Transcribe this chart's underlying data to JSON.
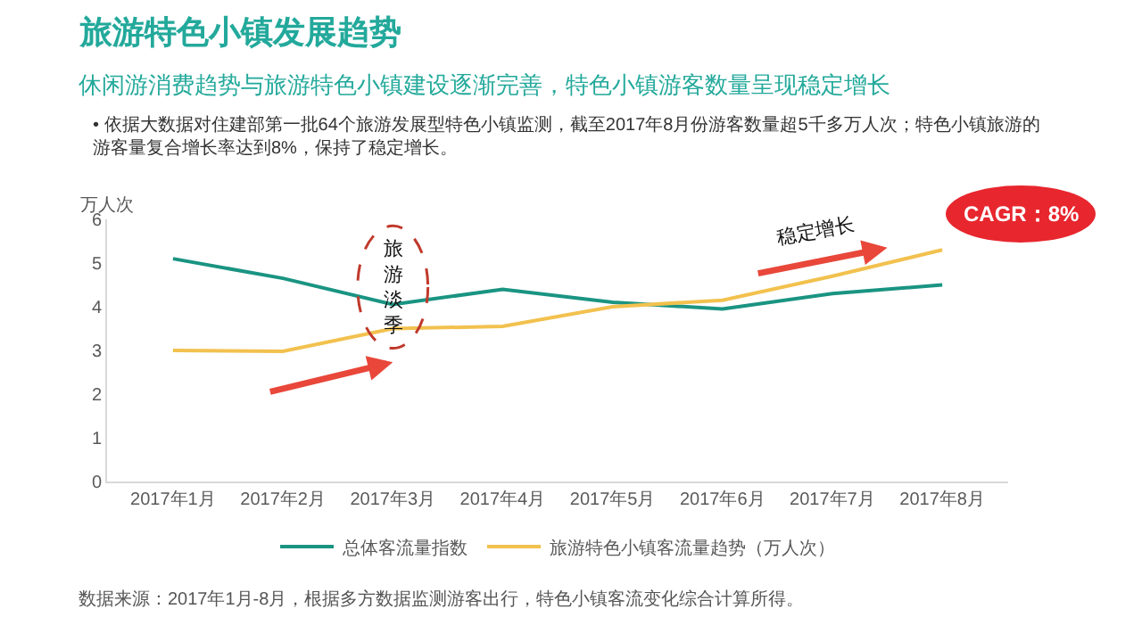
{
  "chart_data": {
    "type": "line",
    "title": "旅游特色小镇发展趋势",
    "subtitle": "休闲游消费趋势与旅游特色小镇建设逐渐完善，特色小镇游客数量呈现稳定增长",
    "ylabel": "万人次",
    "categories": [
      "2017年1月",
      "2017年2月",
      "2017年3月",
      "2017年4月",
      "2017年5月",
      "2017年6月",
      "2017年7月",
      "2017年8月"
    ],
    "series": [
      {
        "name": "总体客流量指数",
        "color": "#1a9482",
        "values": [
          5.1,
          4.65,
          4.05,
          4.4,
          4.1,
          3.95,
          4.3,
          4.5
        ]
      },
      {
        "name": "旅游特色小镇客流量趋势（万人次）",
        "color": "#f2c14e",
        "values": [
          3.0,
          2.98,
          3.5,
          3.55,
          4.0,
          4.15,
          4.7,
          5.3
        ]
      }
    ],
    "ylim": [
      0,
      6
    ],
    "yticks": [
      0,
      1,
      2,
      3,
      4,
      5,
      6
    ],
    "grid": false,
    "legend": "bottom",
    "marker": "none",
    "line_style": "solid",
    "annotations": [
      "• 依据大数据对住建部第一批64个旅游发展型特色小镇监测，截至2017年8月份游客数量超5千多万人次；特色小镇旅游的游客量复合增长率达到8%，保持了稳定增长。",
      "旅游淡季",
      "稳定增长",
      "CAGR：8%",
      "数据来源：2017年1月-8月，根据多方数据监测游客出行，特色小镇客流变化综合计算所得。"
    ]
  }
}
